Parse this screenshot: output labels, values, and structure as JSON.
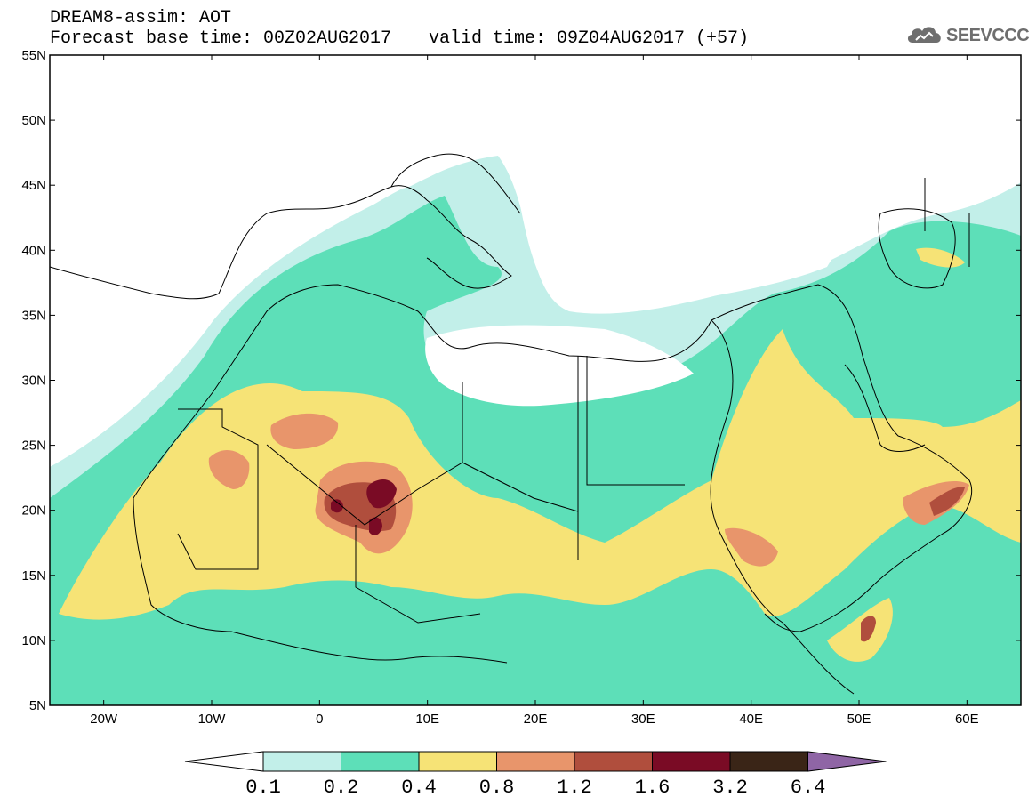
{
  "header": {
    "title": "DREAM8-assim: AOT",
    "base_time": "Forecast base time: 00Z02AUG2017",
    "valid_time": "valid time: 09Z04AUG2017 (+57)"
  },
  "logo": {
    "text": "SEEVCCC",
    "icon": "cloud-logo-icon"
  },
  "map": {
    "lon_range": [
      -25,
      65
    ],
    "lat_range": [
      5,
      55
    ],
    "lat_ticks": [
      {
        "value": 55,
        "label": "55N"
      },
      {
        "value": 50,
        "label": "50N"
      },
      {
        "value": 45,
        "label": "45N"
      },
      {
        "value": 40,
        "label": "40N"
      },
      {
        "value": 35,
        "label": "35N"
      },
      {
        "value": 30,
        "label": "30N"
      },
      {
        "value": 25,
        "label": "25N"
      },
      {
        "value": 20,
        "label": "20N"
      },
      {
        "value": 15,
        "label": "15N"
      },
      {
        "value": 10,
        "label": "10N"
      },
      {
        "value": 5,
        "label": "5N"
      }
    ],
    "lon_ticks": [
      {
        "value": -20,
        "label": "20W"
      },
      {
        "value": -10,
        "label": "10W"
      },
      {
        "value": 0,
        "label": "0"
      },
      {
        "value": 10,
        "label": "10E"
      },
      {
        "value": 20,
        "label": "20E"
      },
      {
        "value": 30,
        "label": "30E"
      },
      {
        "value": 40,
        "label": "40E"
      },
      {
        "value": 50,
        "label": "50E"
      },
      {
        "value": 60,
        "label": "60E"
      }
    ]
  },
  "colorbar": {
    "levels": [
      "0.1",
      "0.2",
      "0.4",
      "0.8",
      "1.2",
      "1.6",
      "3.2",
      "6.4"
    ],
    "colors": [
      "#ffffff",
      "#c2efe9",
      "#5ddfb8",
      "#f6e376",
      "#e8956b",
      "#b04e3d",
      "#7a0b25",
      "#3a2517",
      "#8f65a5"
    ]
  }
}
